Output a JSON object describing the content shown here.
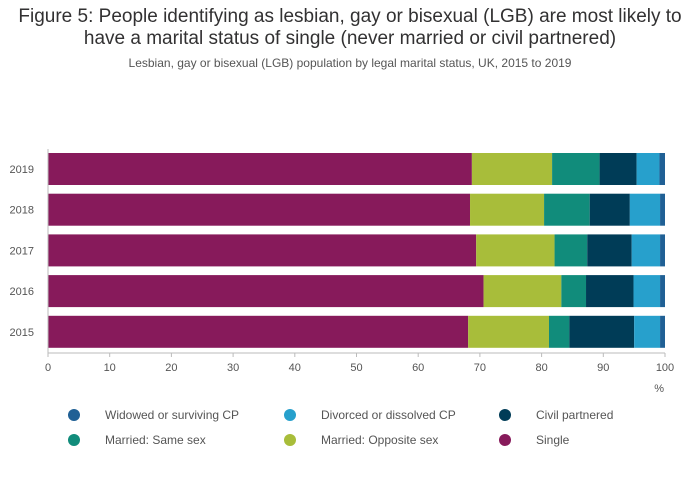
{
  "chart_data": {
    "type": "bar",
    "orientation": "horizontal",
    "stacked": true,
    "title": "Figure 5: People identifying as lesbian, gay or bisexual (LGB) are most likely to have a marital status of single (never married or civil partnered)",
    "subtitle": "Lesbian, gay or bisexual (LGB) population by legal marital status, UK, 2015 to 2019",
    "xlabel": "%",
    "ylabel": "",
    "xlim": [
      0,
      100
    ],
    "xticks": [
      "0",
      "10",
      "20",
      "30",
      "40",
      "50",
      "60",
      "70",
      "80",
      "90",
      "100"
    ],
    "grid": false,
    "legend_position": "bottom",
    "categories": [
      "2019",
      "2018",
      "2017",
      "2016",
      "2015"
    ],
    "series": [
      {
        "name": "Single",
        "color": "#871a5b",
        "values": [
          68.7,
          68.4,
          69.4,
          70.6,
          68.1
        ]
      },
      {
        "name": "Married: Opposite sex",
        "color": "#a8bd3a",
        "values": [
          13.0,
          12.0,
          12.7,
          12.6,
          13.1
        ]
      },
      {
        "name": "Married: Same sex",
        "color": "#118c7b",
        "values": [
          7.7,
          7.4,
          5.3,
          4.0,
          3.3
        ]
      },
      {
        "name": "Civil partnered",
        "color": "#003c57",
        "values": [
          6.0,
          6.5,
          7.2,
          7.7,
          10.5
        ]
      },
      {
        "name": "Divorced or dissolved CP",
        "color": "#27a0cc",
        "values": [
          3.7,
          4.9,
          4.6,
          4.3,
          4.2
        ]
      },
      {
        "name": "Widowed or surviving CP",
        "color": "#206095",
        "values": [
          0.9,
          0.8,
          0.8,
          0.8,
          0.8
        ]
      }
    ],
    "legend_order": [
      "Widowed or surviving CP",
      "Divorced or dissolved CP",
      "Civil partnered",
      "Married: Same sex",
      "Married: Opposite sex",
      "Single"
    ]
  }
}
